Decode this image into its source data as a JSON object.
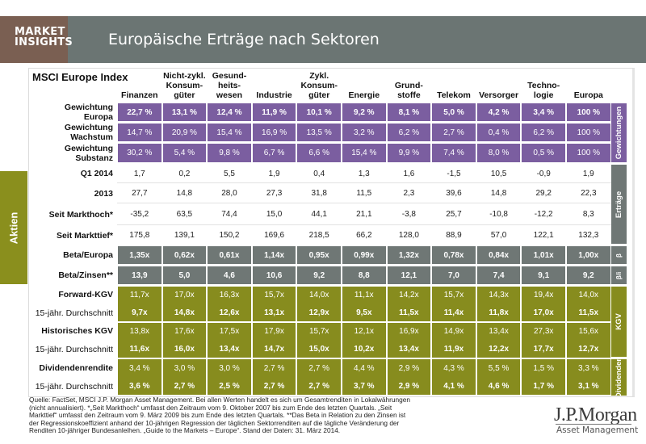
{
  "header": {
    "badge_line1": "MARKET",
    "badge_line2": "INSIGHTS",
    "title": "Europäische Erträge nach Sektoren"
  },
  "side_tab": "Aktien",
  "table": {
    "title": "MSCI Europe Index",
    "columns": [
      "Finanzen",
      "Nicht-zykl. Konsum-güter",
      "Gesund-heits-wesen",
      "Industrie",
      "Zykl. Konsum-güter",
      "Energie",
      "Grund-stoffe",
      "Telekom",
      "Versorger",
      "Techno-logie",
      "Europa"
    ],
    "column_lines": [
      [
        "Finanzen"
      ],
      [
        "Nicht-zykl.",
        "Konsum-",
        "güter"
      ],
      [
        "Gesund-",
        "heits-",
        "wesen"
      ],
      [
        "Industrie"
      ],
      [
        "Zykl.",
        "Konsum-",
        "güter"
      ],
      [
        "Energie"
      ],
      [
        "Grund-",
        "stoffe"
      ],
      [
        "Telekom"
      ],
      [
        "Versorger"
      ],
      [
        "Techno-",
        "logie"
      ],
      [
        "Europa"
      ]
    ],
    "rows": [
      {
        "label": [
          "Gewichtung",
          "Europa"
        ],
        "group": "weights",
        "bold": true,
        "values": [
          "22,7 %",
          "13,1 %",
          "12,4 %",
          "11,9 %",
          "10,1 %",
          "9,2 %",
          "8,1 %",
          "5,0 %",
          "4,2 %",
          "3,4 %",
          "100 %"
        ]
      },
      {
        "label": [
          "Gewichtung",
          "Wachstum"
        ],
        "group": "weights",
        "bold": false,
        "values": [
          "14,7 %",
          "20,9 %",
          "15,4 %",
          "16,9 %",
          "13,5 %",
          "3,2 %",
          "6,2 %",
          "2,7 %",
          "0,4 %",
          "6,2 %",
          "100 %"
        ]
      },
      {
        "label": [
          "Gewichtung",
          "Substanz"
        ],
        "group": "weights",
        "bold": false,
        "values": [
          "30,2 %",
          "5,4 %",
          "9,8 %",
          "6,7 %",
          "6,6 %",
          "15,4 %",
          "9,9 %",
          "7,4 %",
          "8,0 %",
          "0,5 %",
          "100 %"
        ]
      },
      {
        "label": [
          "Q1 2014"
        ],
        "group": "returns",
        "bold": false,
        "values": [
          "1,7",
          "0,2",
          "5,5",
          "1,9",
          "0,4",
          "1,3",
          "1,6",
          "-1,5",
          "10,5",
          "-0,9",
          "1,9"
        ]
      },
      {
        "label": [
          "2013"
        ],
        "group": "returns",
        "bold": false,
        "values": [
          "27,7",
          "14,8",
          "28,0",
          "27,3",
          "31,8",
          "11,5",
          "2,3",
          "39,6",
          "14,8",
          "29,2",
          "22,3"
        ]
      },
      {
        "label": [
          "Seit Markthoch*"
        ],
        "group": "returns",
        "bold": false,
        "values": [
          "-35,2",
          "63,5",
          "74,4",
          "15,0",
          "44,1",
          "21,1",
          "-3,8",
          "25,7",
          "-10,8",
          "-12,2",
          "8,3"
        ]
      },
      {
        "label": [
          "Seit Markttief*"
        ],
        "group": "returns",
        "bold": false,
        "values": [
          "175,8",
          "139,1",
          "150,2",
          "169,6",
          "218,5",
          "66,2",
          "128,0",
          "88,9",
          "57,0",
          "122,1",
          "132,3"
        ]
      },
      {
        "label": [
          "Beta/Europa"
        ],
        "group": "beta",
        "bold": true,
        "values": [
          "1,35x",
          "0,62x",
          "0,61x",
          "1,14x",
          "0,95x",
          "0,99x",
          "1,32x",
          "0,78x",
          "0,84x",
          "1,01x",
          "1,00x"
        ]
      },
      {
        "label": [
          "Beta/Zinsen**"
        ],
        "group": "beta",
        "bold": true,
        "values": [
          "13,9",
          "5,0",
          "4,6",
          "10,6",
          "9,2",
          "8,8",
          "12,1",
          "7,0",
          "7,4",
          "9,1",
          "9,2"
        ]
      },
      {
        "label": [
          "Forward-KGV"
        ],
        "group": "valuation",
        "bold": false,
        "values": [
          "11,7x",
          "17,0x",
          "16,3x",
          "15,7x",
          "14,0x",
          "11,1x",
          "14,2x",
          "15,7x",
          "14,3x",
          "19,4x",
          "14,0x"
        ]
      },
      {
        "label": [
          "15-jähr. Durchschnitt"
        ],
        "group": "valuation",
        "bold": true,
        "label_normal": true,
        "values": [
          "9,7x",
          "14,8x",
          "12,6x",
          "13,1x",
          "12,9x",
          "9,5x",
          "11,5x",
          "11,4x",
          "11,8x",
          "17,0x",
          "11,5x"
        ]
      },
      {
        "label": [
          "Historisches KGV"
        ],
        "group": "valuation",
        "bold": false,
        "values": [
          "13,8x",
          "17,6x",
          "17,5x",
          "17,9x",
          "15,7x",
          "12,1x",
          "16,9x",
          "14,9x",
          "13,4x",
          "27,3x",
          "15,6x"
        ]
      },
      {
        "label": [
          "15-jähr. Durchschnitt"
        ],
        "group": "valuation",
        "bold": true,
        "label_normal": true,
        "values": [
          "11,6x",
          "16,0x",
          "13,4x",
          "14,7x",
          "15,0x",
          "10,2x",
          "13,4x",
          "11,9x",
          "12,2x",
          "17,7x",
          "12,7x"
        ]
      },
      {
        "label": [
          "Dividendenrendite"
        ],
        "group": "valuation",
        "bold": false,
        "values": [
          "3,4 %",
          "3,0 %",
          "3,0 %",
          "2,7 %",
          "2,7 %",
          "4,4 %",
          "2,9 %",
          "4,3 %",
          "5,5 %",
          "1,5 %",
          "3,3 %"
        ]
      },
      {
        "label": [
          "15-jähr. Durchschnitt"
        ],
        "group": "valuation",
        "bold": true,
        "label_normal": true,
        "values": [
          "3,6 %",
          "2,7 %",
          "2,5 %",
          "2,7 %",
          "2,7 %",
          "3,7 %",
          "2,9 %",
          "4,1 %",
          "4,6 %",
          "1,7 %",
          "3,1 %"
        ]
      }
    ],
    "side_labels": [
      "Gewichtungen",
      "Erträge",
      "β",
      "β/i",
      "KGV",
      "Dividenden"
    ]
  },
  "colors": {
    "purple": "#7b5ea0",
    "gray": "#6f7775",
    "olive": "#878c1e",
    "header_bar": "#6b7573",
    "badge": "#7a5f52"
  },
  "footnote": "Quelle: FactSet, MSCI J.P. Morgan Asset Management. Bei allen Werten handelt es sich um Gesamtrenditen in Lokalwährungen (nicht annualisiert). *„Seit Markthoch“ umfasst den Zeitraum vom 9. Oktober 2007 bis zum Ende des letzten Quartals. „Seit Markttief“ umfasst den Zeitraum vom 9. März 2009 bis zum Ende des letzten Quartals. **Das Beta in Relation zu den Zinsen ist der Regressionskoeffizient anhand der 10-jährigen Regression der täglichen Sektorrenditen auf die tägliche Veränderung der Renditen 10-jähriger Bundesanleihen. „Guide to the Markets – Europe“. Stand der Daten: 31. März 2014.",
  "logo": {
    "name": "J.P.Morgan",
    "sub": "Asset Management"
  }
}
